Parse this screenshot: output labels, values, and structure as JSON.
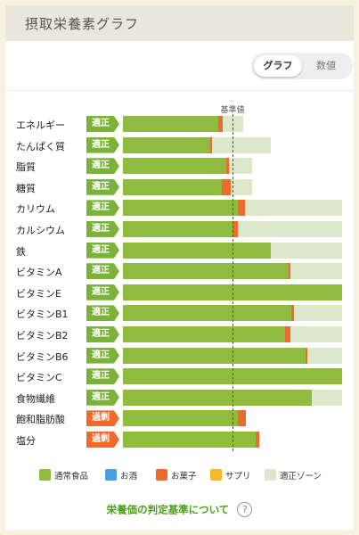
{
  "header": {
    "title": "摂取栄養素グラフ"
  },
  "view_toggle": {
    "graph_label": "グラフ",
    "values_label": "数値",
    "selected": "グラフ"
  },
  "reference_label": "基準値",
  "colors": {
    "regular_food": "#8fbb3f",
    "alcohol": "#4a9fdc",
    "snacks": "#ee6a2f",
    "supplement": "#f5b72c",
    "proper_zone": "#dce8c9",
    "badge_ok": "#7bb33a",
    "badge_excess": "#ee6a2f",
    "link": "#4da11a"
  },
  "nutrients": [
    {
      "name": "エネルギー",
      "status": "適正",
      "status_type": "ok",
      "regular_pct": 87,
      "snacks_pct": 4,
      "zone": [
        87,
        110
      ]
    },
    {
      "name": "たんぱく質",
      "status": "適正",
      "status_type": "ok",
      "regular_pct": 80,
      "snacks_pct": 1,
      "zone": [
        68,
        135
      ]
    },
    {
      "name": "脂質",
      "status": "適正",
      "status_type": "ok",
      "regular_pct": 94,
      "snacks_pct": 3,
      "zone": [
        85,
        118
      ]
    },
    {
      "name": "糖質",
      "status": "適正",
      "status_type": "ok",
      "regular_pct": 90,
      "snacks_pct": 8,
      "zone": [
        85,
        118
      ]
    },
    {
      "name": "カリウム",
      "status": "適正",
      "status_type": "ok",
      "regular_pct": 105,
      "snacks_pct": 6,
      "zone": [
        100,
        200
      ]
    },
    {
      "name": "カルシウム",
      "status": "適正",
      "status_type": "ok",
      "regular_pct": 100,
      "snacks_pct": 5,
      "zone": [
        100,
        200
      ]
    },
    {
      "name": "鉄",
      "status": "適正",
      "status_type": "ok",
      "regular_pct": 135,
      "snacks_pct": 0,
      "zone": [
        100,
        200
      ]
    },
    {
      "name": "ビタミンA",
      "status": "適正",
      "status_type": "ok",
      "regular_pct": 151,
      "snacks_pct": 2,
      "zone": [
        100,
        200
      ]
    },
    {
      "name": "ビタミンE",
      "status": "適正",
      "status_type": "ok",
      "regular_pct": 200,
      "snacks_pct": 0,
      "zone": [
        100,
        200
      ]
    },
    {
      "name": "ビタミンB1",
      "status": "適正",
      "status_type": "ok",
      "regular_pct": 154,
      "snacks_pct": 2,
      "zone": [
        100,
        200
      ]
    },
    {
      "name": "ビタミンB2",
      "status": "適正",
      "status_type": "ok",
      "regular_pct": 148,
      "snacks_pct": 5,
      "zone": [
        100,
        200
      ]
    },
    {
      "name": "ビタミンB6",
      "status": "適正",
      "status_type": "ok",
      "regular_pct": 167,
      "snacks_pct": 1,
      "zone": [
        100,
        200
      ]
    },
    {
      "name": "ビタミンC",
      "status": "適正",
      "status_type": "ok",
      "regular_pct": 200,
      "snacks_pct": 0,
      "zone": [
        100,
        200
      ]
    },
    {
      "name": "食物繊維",
      "status": "適正",
      "status_type": "ok",
      "regular_pct": 172,
      "snacks_pct": 0,
      "zone": [
        100,
        200
      ]
    },
    {
      "name": "飽和脂肪酸",
      "status": "過剰",
      "status_type": "excess",
      "regular_pct": 105,
      "snacks_pct": 7,
      "zone": [
        0,
        0
      ]
    },
    {
      "name": "塩分",
      "status": "過剰",
      "status_type": "excess",
      "regular_pct": 121,
      "snacks_pct": 3,
      "zone": [
        0,
        0
      ]
    }
  ],
  "legend": [
    {
      "label": "通常食品",
      "color": "#8fbb3f"
    },
    {
      "label": "お酒",
      "color": "#4a9fdc"
    },
    {
      "label": "お菓子",
      "color": "#ee6a2f"
    },
    {
      "label": "サプリ",
      "color": "#f5b72c"
    },
    {
      "label": "適正ゾーン",
      "color": "#dce8c9"
    }
  ],
  "criteria_link": {
    "label": "栄養価の判定基準について",
    "icon": "?"
  }
}
